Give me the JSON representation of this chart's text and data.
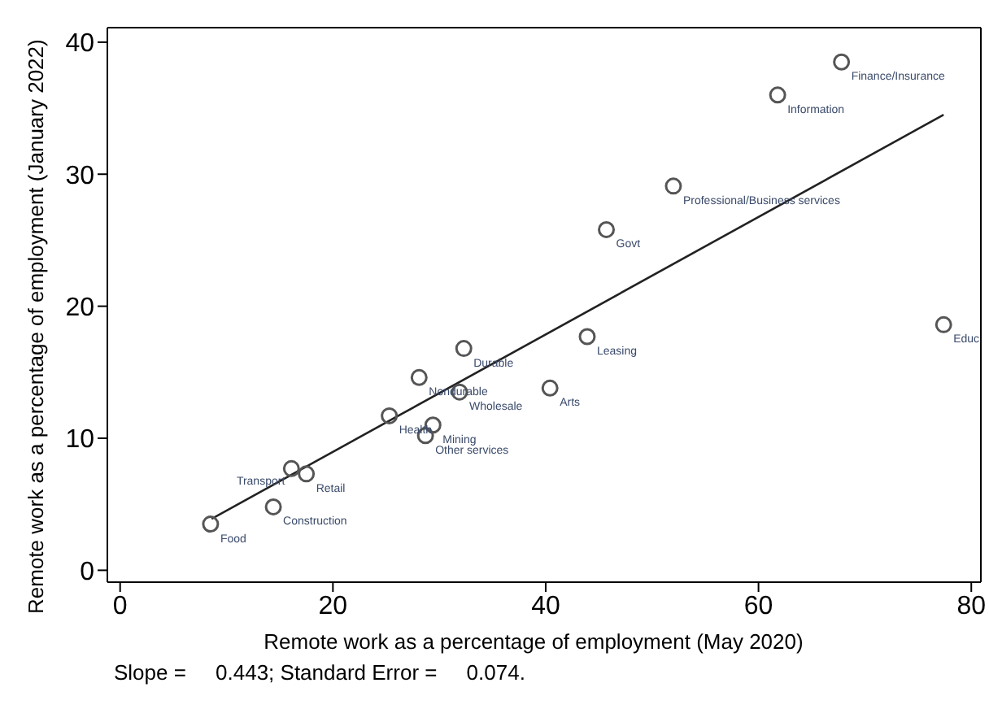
{
  "chart_data": {
    "type": "scatter",
    "xlabel": "Remote work as a percentage of employment (May 2020)",
    "ylabel": "Remote work as a percentage of employment (January 2022)",
    "xlim": [
      -1.2,
      80.9
    ],
    "ylim": [
      -0.9,
      41.1
    ],
    "xticks": [
      0,
      20,
      40,
      60,
      80
    ],
    "yticks": [
      0,
      10,
      20,
      30,
      40
    ],
    "grid": false,
    "series": [
      {
        "marker": "circle",
        "color": "#555555",
        "x": [
          8.5,
          14.4,
          16.1,
          17.5,
          25.3,
          29.4,
          28.7,
          28.1,
          31.9,
          32.3,
          40.4,
          43.9,
          45.7,
          52.0,
          61.8,
          67.8,
          77.4
        ],
        "values": [
          3.5,
          4.8,
          7.7,
          7.3,
          11.7,
          11.0,
          10.2,
          14.6,
          13.5,
          16.8,
          13.8,
          17.7,
          25.8,
          29.1,
          36.0,
          38.5,
          18.6
        ]
      },
      {
        "type": "line",
        "marker": "none",
        "color": "#222222",
        "x": [
          8.6,
          77.4
        ],
        "values": [
          3.9,
          34.5
        ]
      }
    ],
    "annotations": [
      {
        "text": "Food",
        "x": 8.5,
        "y": 3.5
      },
      {
        "text": "Construction",
        "x": 14.4,
        "y": 4.8
      },
      {
        "text": "Transport",
        "x": 16.1,
        "y": 7.7
      },
      {
        "text": "Retail",
        "x": 17.5,
        "y": 7.3
      },
      {
        "text": "Health",
        "x": 25.3,
        "y": 11.7
      },
      {
        "text": "Mining",
        "x": 29.4,
        "y": 11.0
      },
      {
        "text": "Other services",
        "x": 28.7,
        "y": 10.2
      },
      {
        "text": "Nondurable",
        "x": 28.1,
        "y": 14.6
      },
      {
        "text": "Wholesale",
        "x": 31.9,
        "y": 13.5
      },
      {
        "text": "Durable",
        "x": 32.3,
        "y": 16.8
      },
      {
        "text": "Arts",
        "x": 40.4,
        "y": 13.8
      },
      {
        "text": "Leasing",
        "x": 43.9,
        "y": 17.7
      },
      {
        "text": "Govt",
        "x": 45.7,
        "y": 25.8
      },
      {
        "text": "Professional/Business services",
        "x": 52.0,
        "y": 29.1
      },
      {
        "text": "Information",
        "x": 61.8,
        "y": 36.0
      },
      {
        "text": "Finance/Insurance",
        "x": 67.8,
        "y": 38.5
      },
      {
        "text": "Educ",
        "x": 77.4,
        "y": 18.6
      },
      "Slope =     0.443; Standard Error =     0.074."
    ]
  }
}
